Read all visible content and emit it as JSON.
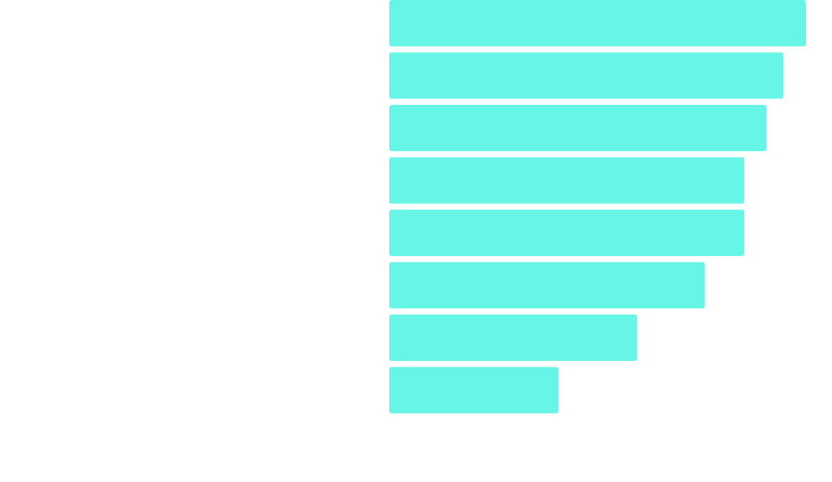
{
  "chart_data": {
    "type": "bar",
    "orientation": "horizontal",
    "title": "",
    "xlabel": "",
    "ylabel": "",
    "categories": [
      "",
      "",
      "",
      "",
      "",
      "",
      "",
      ""
    ],
    "values": [
      100,
      94.6,
      90.5,
      85.2,
      85.2,
      75.7,
      59.5,
      40.6
    ],
    "xlim": [
      0,
      100
    ],
    "grid": false,
    "legend": "none",
    "bar_color": "#66F5E6"
  }
}
